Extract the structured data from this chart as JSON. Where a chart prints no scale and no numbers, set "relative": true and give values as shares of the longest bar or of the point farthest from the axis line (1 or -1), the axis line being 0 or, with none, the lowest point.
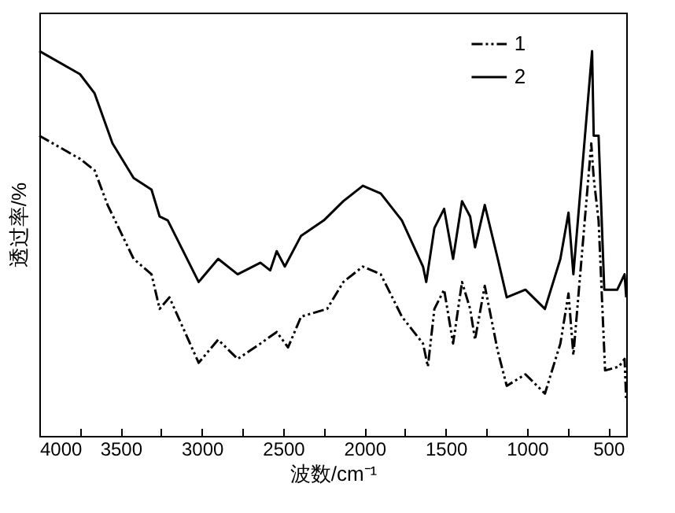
{
  "chart_data": {
    "type": "line",
    "xlabel": "波数/cm⁻¹",
    "ylabel": "透过率/%",
    "relative": true,
    "xlim": [
      4000,
      390
    ],
    "xticks": [
      4000,
      {
        "value": 3750,
        "label": null
      },
      3500,
      {
        "value": 3250,
        "label": null
      },
      3000,
      {
        "value": 2750,
        "label": null
      },
      2500,
      {
        "value": 2250,
        "label": null
      },
      2000,
      {
        "value": 1750,
        "label": null
      },
      1500,
      {
        "value": 1250,
        "label": null
      },
      1000,
      {
        "value": 750,
        "label": null
      },
      500
    ],
    "legend": "top right",
    "grid": false,
    "series": [
      {
        "name": "1",
        "color": "#000000",
        "line_style": "dashed",
        "x": [
          4000,
          3750,
          3660,
          3580,
          3420,
          3310,
          3260,
          3200,
          3020,
          2900,
          2780,
          2640,
          2540,
          2470,
          2390,
          2230,
          2130,
          2010,
          1900,
          1770,
          1640,
          1610,
          1570,
          1510,
          1455,
          1400,
          1350,
          1320,
          1260,
          1180,
          1125,
          1010,
          890,
          795,
          745,
          715,
          605,
          590,
          560,
          520,
          435,
          400,
          390
        ],
        "values": [
          0.78,
          0.72,
          0.69,
          0.6,
          0.46,
          0.42,
          0.33,
          0.36,
          0.19,
          0.25,
          0.2,
          0.24,
          0.27,
          0.23,
          0.31,
          0.33,
          0.4,
          0.44,
          0.42,
          0.31,
          0.24,
          0.18,
          0.33,
          0.38,
          0.24,
          0.4,
          0.33,
          0.25,
          0.39,
          0.22,
          0.13,
          0.16,
          0.11,
          0.24,
          0.37,
          0.21,
          0.76,
          0.67,
          0.56,
          0.17,
          0.18,
          0.2,
          0.09
        ]
      },
      {
        "name": "2",
        "color": "#000000",
        "line_style": "solid",
        "x": [
          4000,
          3750,
          3660,
          3550,
          3420,
          3310,
          3260,
          3210,
          3020,
          2900,
          2780,
          2640,
          2580,
          2540,
          2490,
          2390,
          2250,
          2130,
          2010,
          1900,
          1770,
          1640,
          1620,
          1570,
          1510,
          1455,
          1400,
          1350,
          1320,
          1260,
          1180,
          1125,
          1010,
          890,
          795,
          745,
          715,
          600,
          590,
          560,
          525,
          445,
          400,
          390
        ],
        "values": [
          1.0,
          0.94,
          0.89,
          0.76,
          0.67,
          0.64,
          0.57,
          0.56,
          0.4,
          0.46,
          0.42,
          0.45,
          0.43,
          0.48,
          0.44,
          0.52,
          0.56,
          0.61,
          0.65,
          0.63,
          0.56,
          0.44,
          0.4,
          0.54,
          0.59,
          0.46,
          0.61,
          0.57,
          0.49,
          0.6,
          0.46,
          0.36,
          0.38,
          0.33,
          0.46,
          0.58,
          0.42,
          1.0,
          0.78,
          0.78,
          0.38,
          0.38,
          0.42,
          0.36
        ]
      }
    ]
  }
}
